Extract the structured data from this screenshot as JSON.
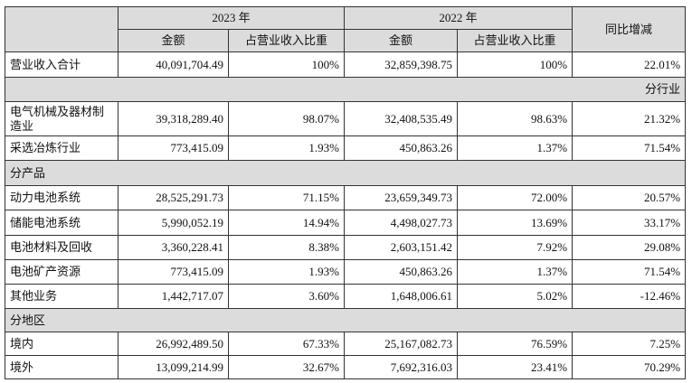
{
  "table": {
    "header": {
      "groups": [
        "2023 年",
        "2022 年"
      ],
      "change": "同比增减",
      "sub": [
        "金额",
        "占营业收入比重",
        "金额",
        "占营业收入比重"
      ]
    },
    "rows": [
      [
        "营业收入合计",
        "40,091,704.49",
        "100%",
        "32,859,398.75",
        "100%",
        "22.01%"
      ],
      [
        "分行业"
      ],
      [
        "电气机械及器材制造业",
        "39,318,289.40",
        "98.07%",
        "32,408,535.49",
        "98.63%",
        "21.32%"
      ],
      [
        "采选冶炼行业",
        "773,415.09",
        "1.93%",
        "450,863.26",
        "1.37%",
        "71.54%"
      ],
      [
        "分产品"
      ],
      [
        "动力电池系统",
        "28,525,291.73",
        "71.15%",
        "23,659,349.73",
        "72.00%",
        "20.57%"
      ],
      [
        "储能电池系统",
        "5,990,052.19",
        "14.94%",
        "4,498,027.73",
        "13.69%",
        "33.17%"
      ],
      [
        "电池材料及回收",
        "3,360,228.41",
        "8.38%",
        "2,603,151.42",
        "7.92%",
        "29.08%"
      ],
      [
        "电池矿产资源",
        "773,415.09",
        "1.93%",
        "450,863.26",
        "1.37%",
        "71.54%"
      ],
      [
        "其他业务",
        "1,442,717.07",
        "3.60%",
        "1,648,006.61",
        "5.02%",
        "-12.46%"
      ],
      [
        "分地区"
      ],
      [
        "境内",
        "26,992,489.50",
        "67.33%",
        "25,167,082.73",
        "76.59%",
        "7.25%"
      ],
      [
        "境外",
        "13,099,214.99",
        "32.67%",
        "7,692,316.03",
        "23.41%",
        "70.29%"
      ]
    ]
  }
}
